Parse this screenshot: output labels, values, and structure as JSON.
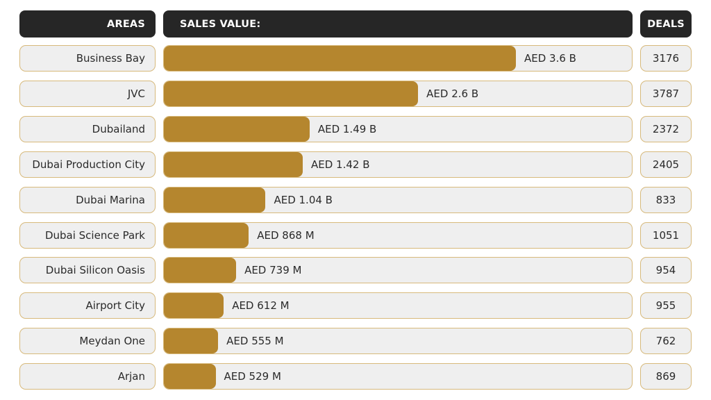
{
  "chart_data": {
    "type": "bar",
    "orientation": "horizontal",
    "headers": {
      "areas": "AREAS",
      "sales": "SALES VALUE:",
      "deals": "DEALS"
    },
    "xlim": [
      0,
      4.8
    ],
    "unit": "AED billions",
    "bar_color": "#b5862e",
    "rows": [
      {
        "area": "Business Bay",
        "value": 3.6,
        "label": "AED 3.6 B",
        "deals": "3176"
      },
      {
        "area": "JVC",
        "value": 2.6,
        "label": "AED 2.6 B",
        "deals": "3787"
      },
      {
        "area": "Dubailand",
        "value": 1.49,
        "label": "AED 1.49 B",
        "deals": "2372"
      },
      {
        "area": "Dubai Production City",
        "value": 1.42,
        "label": "AED 1.42 B",
        "deals": "2405"
      },
      {
        "area": "Dubai Marina",
        "value": 1.04,
        "label": "AED 1.04 B",
        "deals": "833"
      },
      {
        "area": "Dubai Science Park",
        "value": 0.868,
        "label": "AED 868 M",
        "deals": "1051"
      },
      {
        "area": "Dubai Silicon Oasis",
        "value": 0.739,
        "label": "AED 739 M",
        "deals": "954"
      },
      {
        "area": "Airport City",
        "value": 0.612,
        "label": "AED 612 M",
        "deals": "955"
      },
      {
        "area": "Meydan One",
        "value": 0.555,
        "label": "AED 555 M",
        "deals": "762"
      },
      {
        "area": "Arjan",
        "value": 0.529,
        "label": "AED 529 M",
        "deals": "869"
      }
    ]
  }
}
